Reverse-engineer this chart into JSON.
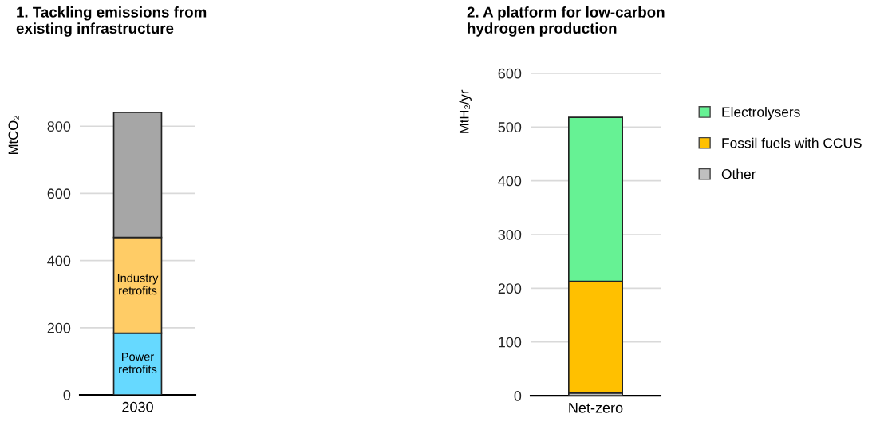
{
  "chart_data": [
    {
      "type": "bar",
      "stacked": true,
      "title": "1. Tackling emissions from\nexisting infrastructure",
      "ylabel": "MtCO₂",
      "categories": [
        "2030"
      ],
      "ylim": [
        0,
        841
      ],
      "yticks": [
        0,
        200,
        400,
        600,
        800
      ],
      "grid": "y",
      "legend": false,
      "series": [
        {
          "name": "Power\nretrofits",
          "color": "#66d9ff",
          "values": [
            184
          ]
        },
        {
          "name": "Industry\nretrofits",
          "color": "#ffcc66",
          "values": [
            285
          ]
        },
        {
          "color": "#a6a6a6",
          "values": [
            372
          ]
        }
      ]
    },
    {
      "type": "bar",
      "stacked": true,
      "title": "2. A platform for low-carbon\nhydrogen production",
      "ylabel": "MtH₂/yr",
      "categories": [
        "Net-zero"
      ],
      "ylim": [
        0,
        600
      ],
      "yticks": [
        0,
        100,
        200,
        300,
        400,
        500,
        600
      ],
      "grid": "y",
      "legend": "right",
      "series": [
        {
          "name": "Other",
          "color": "#bfbfbf",
          "values": [
            5
          ]
        },
        {
          "name": "Fossil fuels with CCUS",
          "color": "#ffc000",
          "values": [
            208
          ]
        },
        {
          "name": "Electrolysers",
          "color": "#66f294",
          "values": [
            305
          ]
        }
      ]
    }
  ]
}
